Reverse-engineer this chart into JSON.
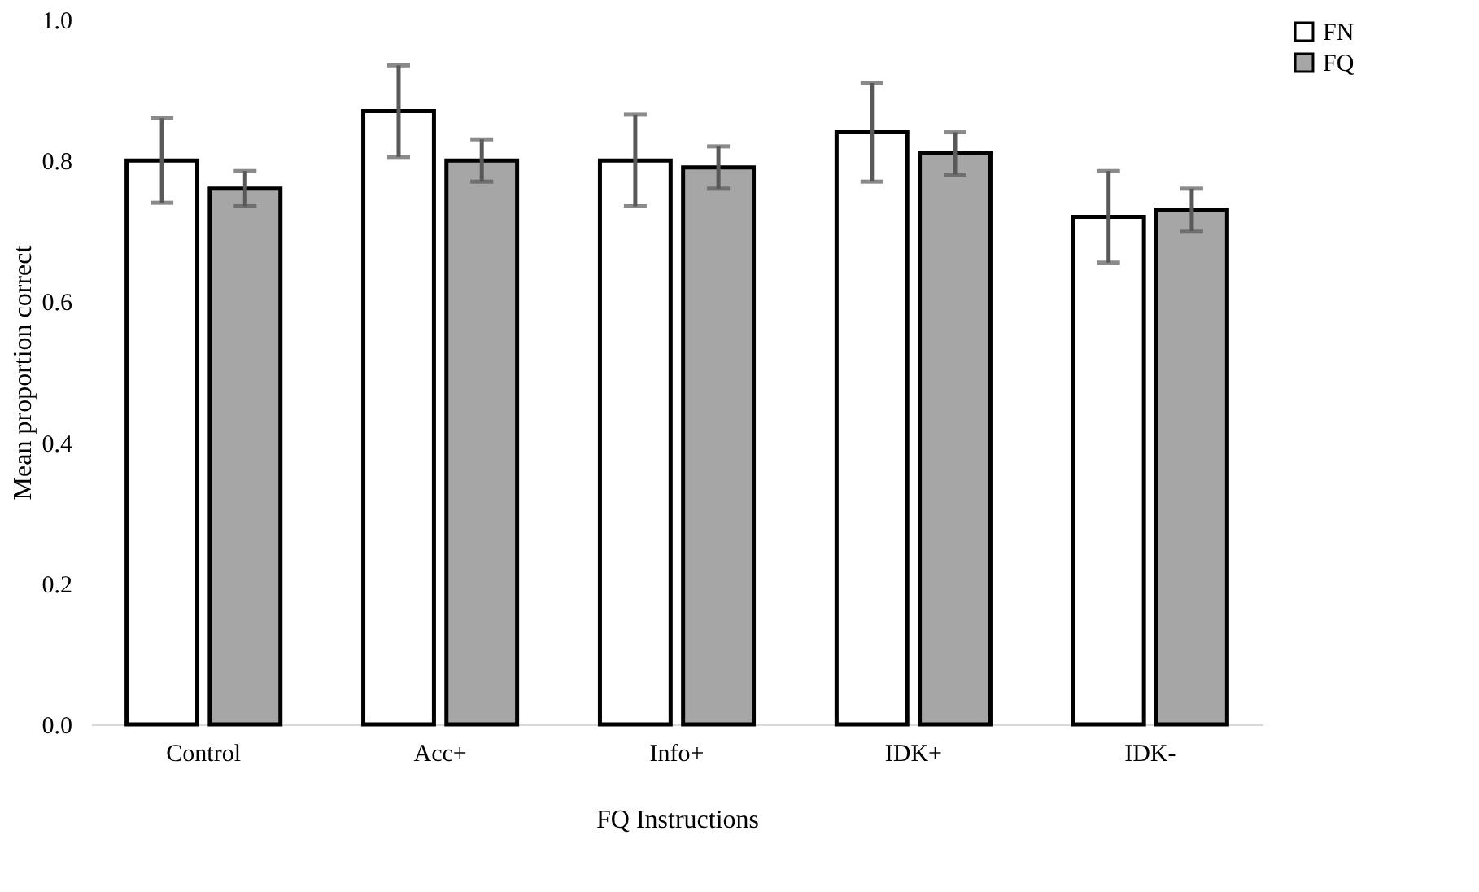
{
  "chart_data": {
    "type": "bar",
    "xlabel": "FQ Instructions",
    "ylabel": "Mean proportion correct",
    "categories": [
      "Control",
      "Acc+",
      "Info+",
      "IDK+",
      "IDK-"
    ],
    "series": [
      {
        "name": "FN",
        "color": "#ffffff",
        "values": [
          0.8,
          0.87,
          0.8,
          0.84,
          0.72
        ],
        "errors": [
          0.06,
          0.065,
          0.065,
          0.07,
          0.065
        ]
      },
      {
        "name": "FQ",
        "color": "#a6a6a6",
        "values": [
          0.76,
          0.8,
          0.79,
          0.81,
          0.73
        ],
        "errors": [
          0.025,
          0.03,
          0.03,
          0.03,
          0.03
        ]
      }
    ],
    "ylim": [
      0,
      1.0
    ],
    "yticks": [
      {
        "value": 0,
        "label": "0.0"
      },
      {
        "value": 0.2,
        "label": "0.2"
      },
      {
        "value": 0.4,
        "label": "0.4"
      },
      {
        "value": 0.6,
        "label": "0.6"
      },
      {
        "value": 0.8,
        "label": "0.8"
      },
      {
        "value": 1.0,
        "label": "1.0"
      }
    ],
    "grid": false,
    "legend": "right"
  }
}
